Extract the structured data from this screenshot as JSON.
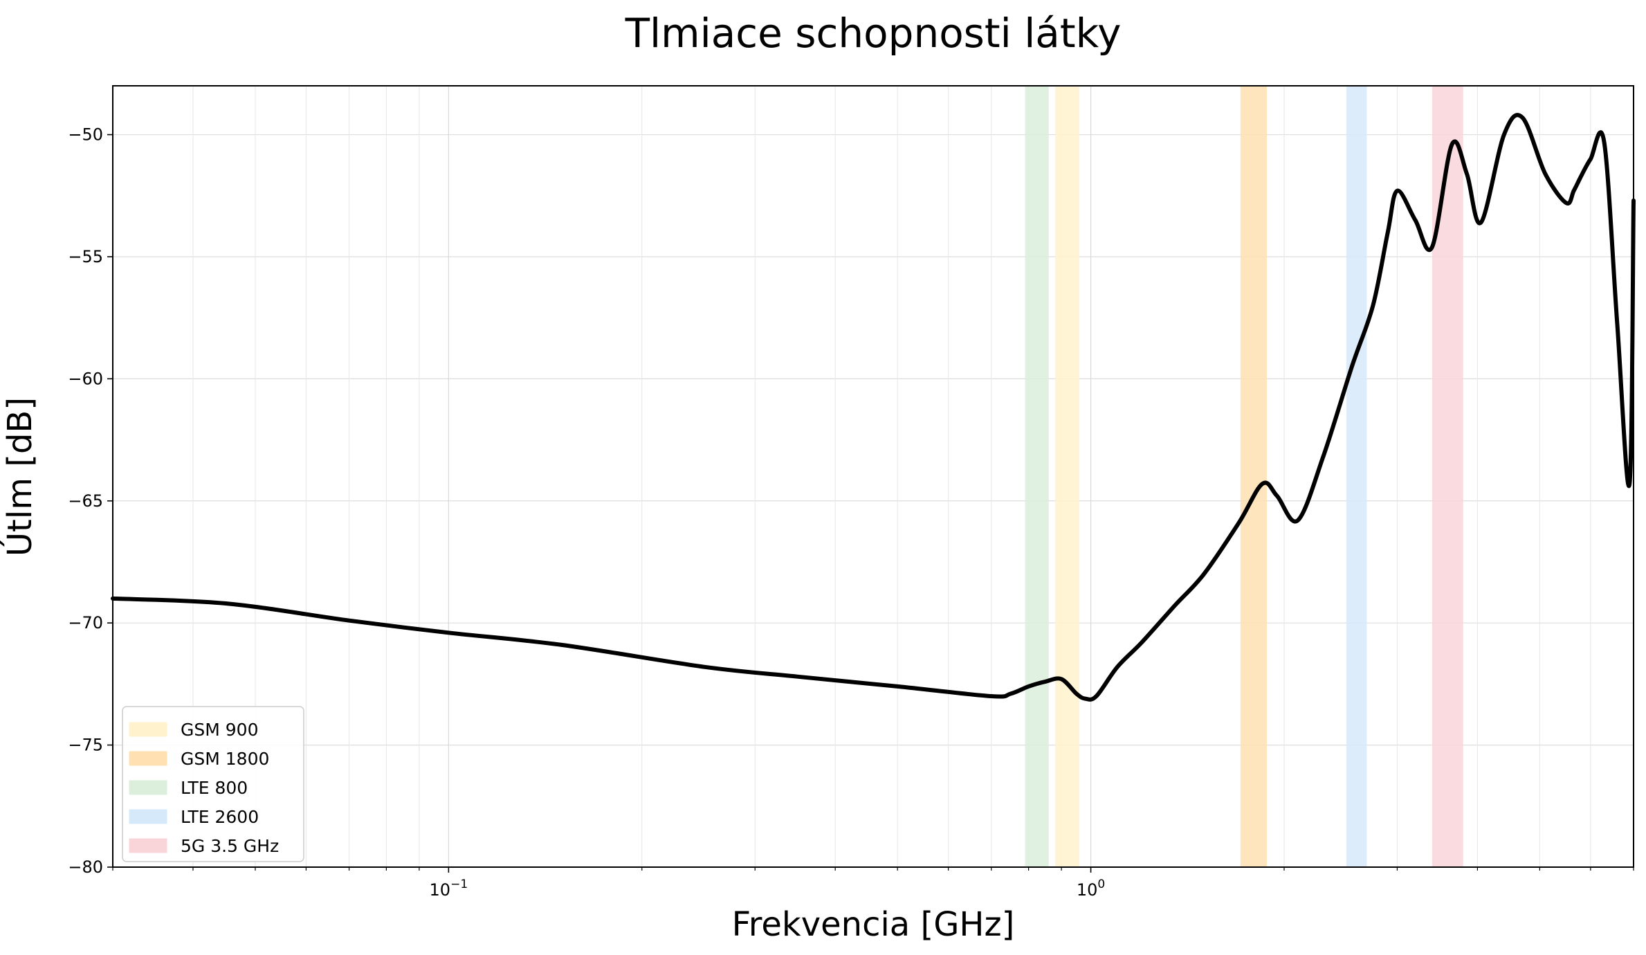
{
  "chart_data": {
    "type": "line",
    "title": "Tlmiace schopnosti látky",
    "xlabel": "Frekvencia [GHz]",
    "ylabel": "Útlm [dB]",
    "xscale": "log",
    "xlim": [
      0.03,
      7.0
    ],
    "ylim": [
      -80,
      -48
    ],
    "grid": true,
    "legend_position": "lower-left",
    "x_ticks": [
      {
        "value": 0.1,
        "base": "10",
        "exp": "−1"
      },
      {
        "value": 1.0,
        "base": "10",
        "exp": "0"
      }
    ],
    "y_ticks": [
      {
        "value": -50,
        "label": "−50"
      },
      {
        "value": -55,
        "label": "−55"
      },
      {
        "value": -60,
        "label": "−60"
      },
      {
        "value": -65,
        "label": "−65"
      },
      {
        "value": -70,
        "label": "−70"
      },
      {
        "value": -75,
        "label": "−75"
      },
      {
        "value": -80,
        "label": "−80"
      }
    ],
    "bands": [
      {
        "name": "GSM 900",
        "x_min": 0.88,
        "x_max": 0.96,
        "color": "#fff2cc"
      },
      {
        "name": "GSM 1800",
        "x_min": 1.71,
        "x_max": 1.88,
        "color": "#ffe0b3"
      },
      {
        "name": "LTE 800",
        "x_min": 0.79,
        "x_max": 0.86,
        "color": "#dcefdc"
      },
      {
        "name": "LTE 2600",
        "x_min": 2.5,
        "x_max": 2.69,
        "color": "#d6e9fa"
      },
      {
        "name": "5G 3.5 GHz",
        "x_min": 3.4,
        "x_max": 3.8,
        "color": "#f9d5d9"
      }
    ],
    "series": [
      {
        "color": "#000000",
        "x": [
          0.03,
          0.045,
          0.07,
          0.1,
          0.15,
          0.25,
          0.35,
          0.5,
          0.7,
          0.75,
          0.8,
          0.85,
          0.9,
          0.95,
          0.98,
          1.02,
          1.1,
          1.2,
          1.35,
          1.5,
          1.7,
          1.85,
          1.95,
          2.1,
          2.3,
          2.55,
          2.75,
          2.9,
          3.0,
          3.2,
          3.4,
          3.65,
          3.85,
          4.05,
          4.4,
          4.7,
          5.1,
          5.5,
          5.65,
          5.8,
          6.0,
          6.3,
          6.6,
          6.9,
          7.0
        ],
        "y": [
          -69.0,
          -69.2,
          -69.9,
          -70.4,
          -70.9,
          -71.8,
          -72.2,
          -72.6,
          -73.0,
          -72.9,
          -72.6,
          -72.4,
          -72.3,
          -72.9,
          -73.1,
          -73.0,
          -71.8,
          -70.8,
          -69.3,
          -68.0,
          -65.9,
          -64.3,
          -64.8,
          -65.8,
          -63.2,
          -59.5,
          -57.0,
          -54.0,
          -52.3,
          -53.5,
          -54.6,
          -50.4,
          -51.6,
          -53.6,
          -50.0,
          -49.3,
          -51.6,
          -52.8,
          -52.3,
          -51.7,
          -51.0,
          -50.3,
          -57.7,
          -64.3,
          -52.7
        ]
      }
    ]
  }
}
